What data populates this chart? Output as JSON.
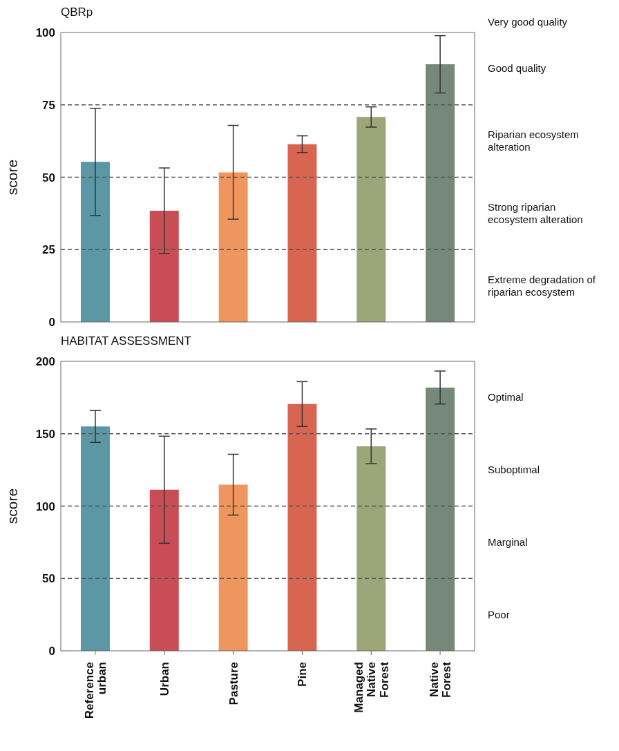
{
  "chart_data": [
    {
      "type": "bar",
      "title": "QBRp",
      "ylabel": "score",
      "categories": [
        null,
        null,
        null,
        null,
        null,
        null
      ],
      "values": [
        55.3,
        38.4,
        51.7,
        61.4,
        70.8,
        89.0
      ],
      "errors": [
        18.5,
        14.8,
        16.2,
        2.9,
        3.5,
        9.9
      ],
      "colors": [
        "#5b97a4",
        "#c84d55",
        "#ee965e",
        "#d86552",
        "#9ca678",
        "#76887a"
      ],
      "ylim": [
        0,
        100
      ],
      "yticks": [
        0,
        25,
        50,
        75,
        100
      ],
      "tick_labels": "y",
      "ref_lines": [
        {
          "axis": "y",
          "value": 25,
          "color": "#555555",
          "line_style": "dashed"
        },
        {
          "axis": "y",
          "value": 50,
          "color": "#555555",
          "line_style": "dashed"
        },
        {
          "axis": "y",
          "value": 75,
          "color": "#555555",
          "line_style": "dashed"
        }
      ],
      "annotations": [
        "Very good quality",
        "Good quality",
        "Riparian ecosystem alteration",
        "Strong riparian ecosystem alteration",
        "Extreme degradation of riparian ecosystem"
      ]
    },
    {
      "type": "bar",
      "title": "HABITAT ASSESSMENT",
      "ylabel": "score",
      "categories": [
        "Reference urban",
        "Urban",
        "Pasture",
        "Pine",
        "Managed Native Forest",
        "Native Forest"
      ],
      "values": [
        155,
        111.3,
        114.8,
        170.5,
        141.3,
        181.9
      ],
      "errors": [
        11,
        37,
        21,
        15.5,
        12,
        11.4
      ],
      "colors": [
        "#5b97a4",
        "#c84d55",
        "#ee965e",
        "#d86552",
        "#9ca678",
        "#76887a"
      ],
      "ylim": [
        0,
        200
      ],
      "yticks": [
        0,
        50,
        100,
        150,
        200
      ],
      "ref_lines": [
        {
          "axis": "y",
          "value": 50,
          "color": "#555555",
          "line_style": "dashed"
        },
        {
          "axis": "y",
          "value": 100,
          "color": "#555555",
          "line_style": "dashed"
        },
        {
          "axis": "y",
          "value": 150,
          "color": "#555555",
          "line_style": "dashed"
        }
      ],
      "annotations": [
        "Optimal",
        "Suboptimal",
        "Marginal",
        "Poor"
      ]
    }
  ]
}
